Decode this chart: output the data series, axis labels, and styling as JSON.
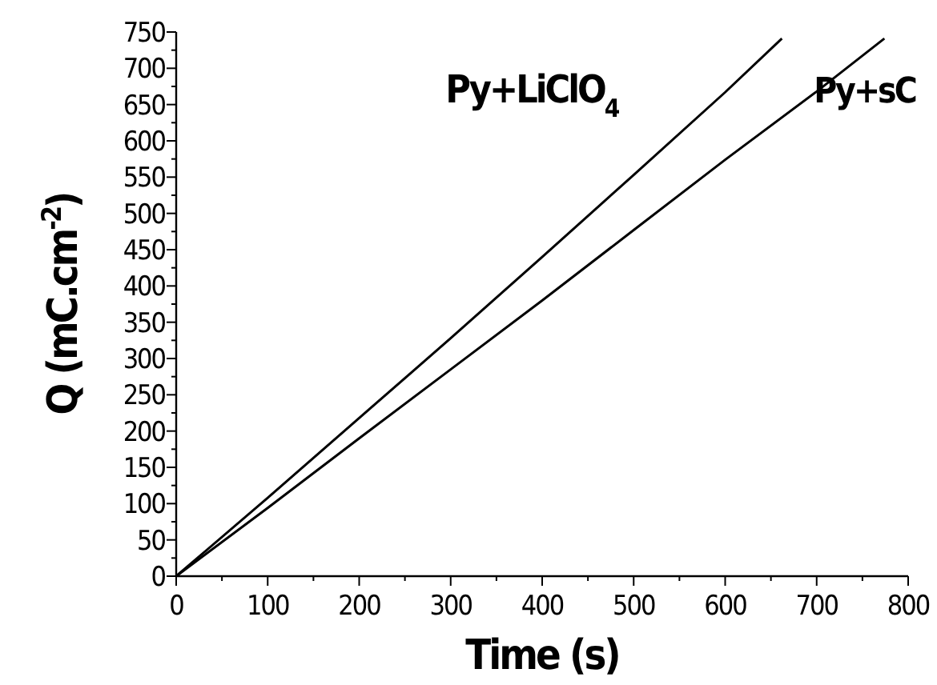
{
  "chart_data": {
    "type": "line",
    "xlabel": "Time (s)",
    "ylabel": "Q (mC.cm$^{-2}$)",
    "xlim": [
      0,
      800
    ],
    "xticks": [
      0,
      100,
      200,
      300,
      400,
      500,
      600,
      700,
      800
    ],
    "ylim": [
      0,
      750
    ],
    "yticks": [
      0,
      50,
      100,
      150,
      200,
      250,
      300,
      350,
      400,
      450,
      500,
      550,
      600,
      650,
      700,
      750
    ],
    "grid": false,
    "legend": false,
    "marker": "none",
    "line_style": "solid",
    "series": [
      {
        "name": "Py+LiClO$_{4}$",
        "color": "#000000",
        "x": [
          0,
          100,
          200,
          300,
          400,
          500,
          600,
          662
        ],
        "values": [
          0,
          108,
          218,
          328,
          440,
          553,
          667,
          741
        ]
      },
      {
        "name": "Py+sC",
        "color": "#000000",
        "x": [
          0,
          100,
          200,
          300,
          400,
          500,
          600,
          700,
          774
        ],
        "values": [
          0,
          94,
          190,
          285,
          380,
          477,
          574,
          668,
          741
        ]
      }
    ]
  }
}
